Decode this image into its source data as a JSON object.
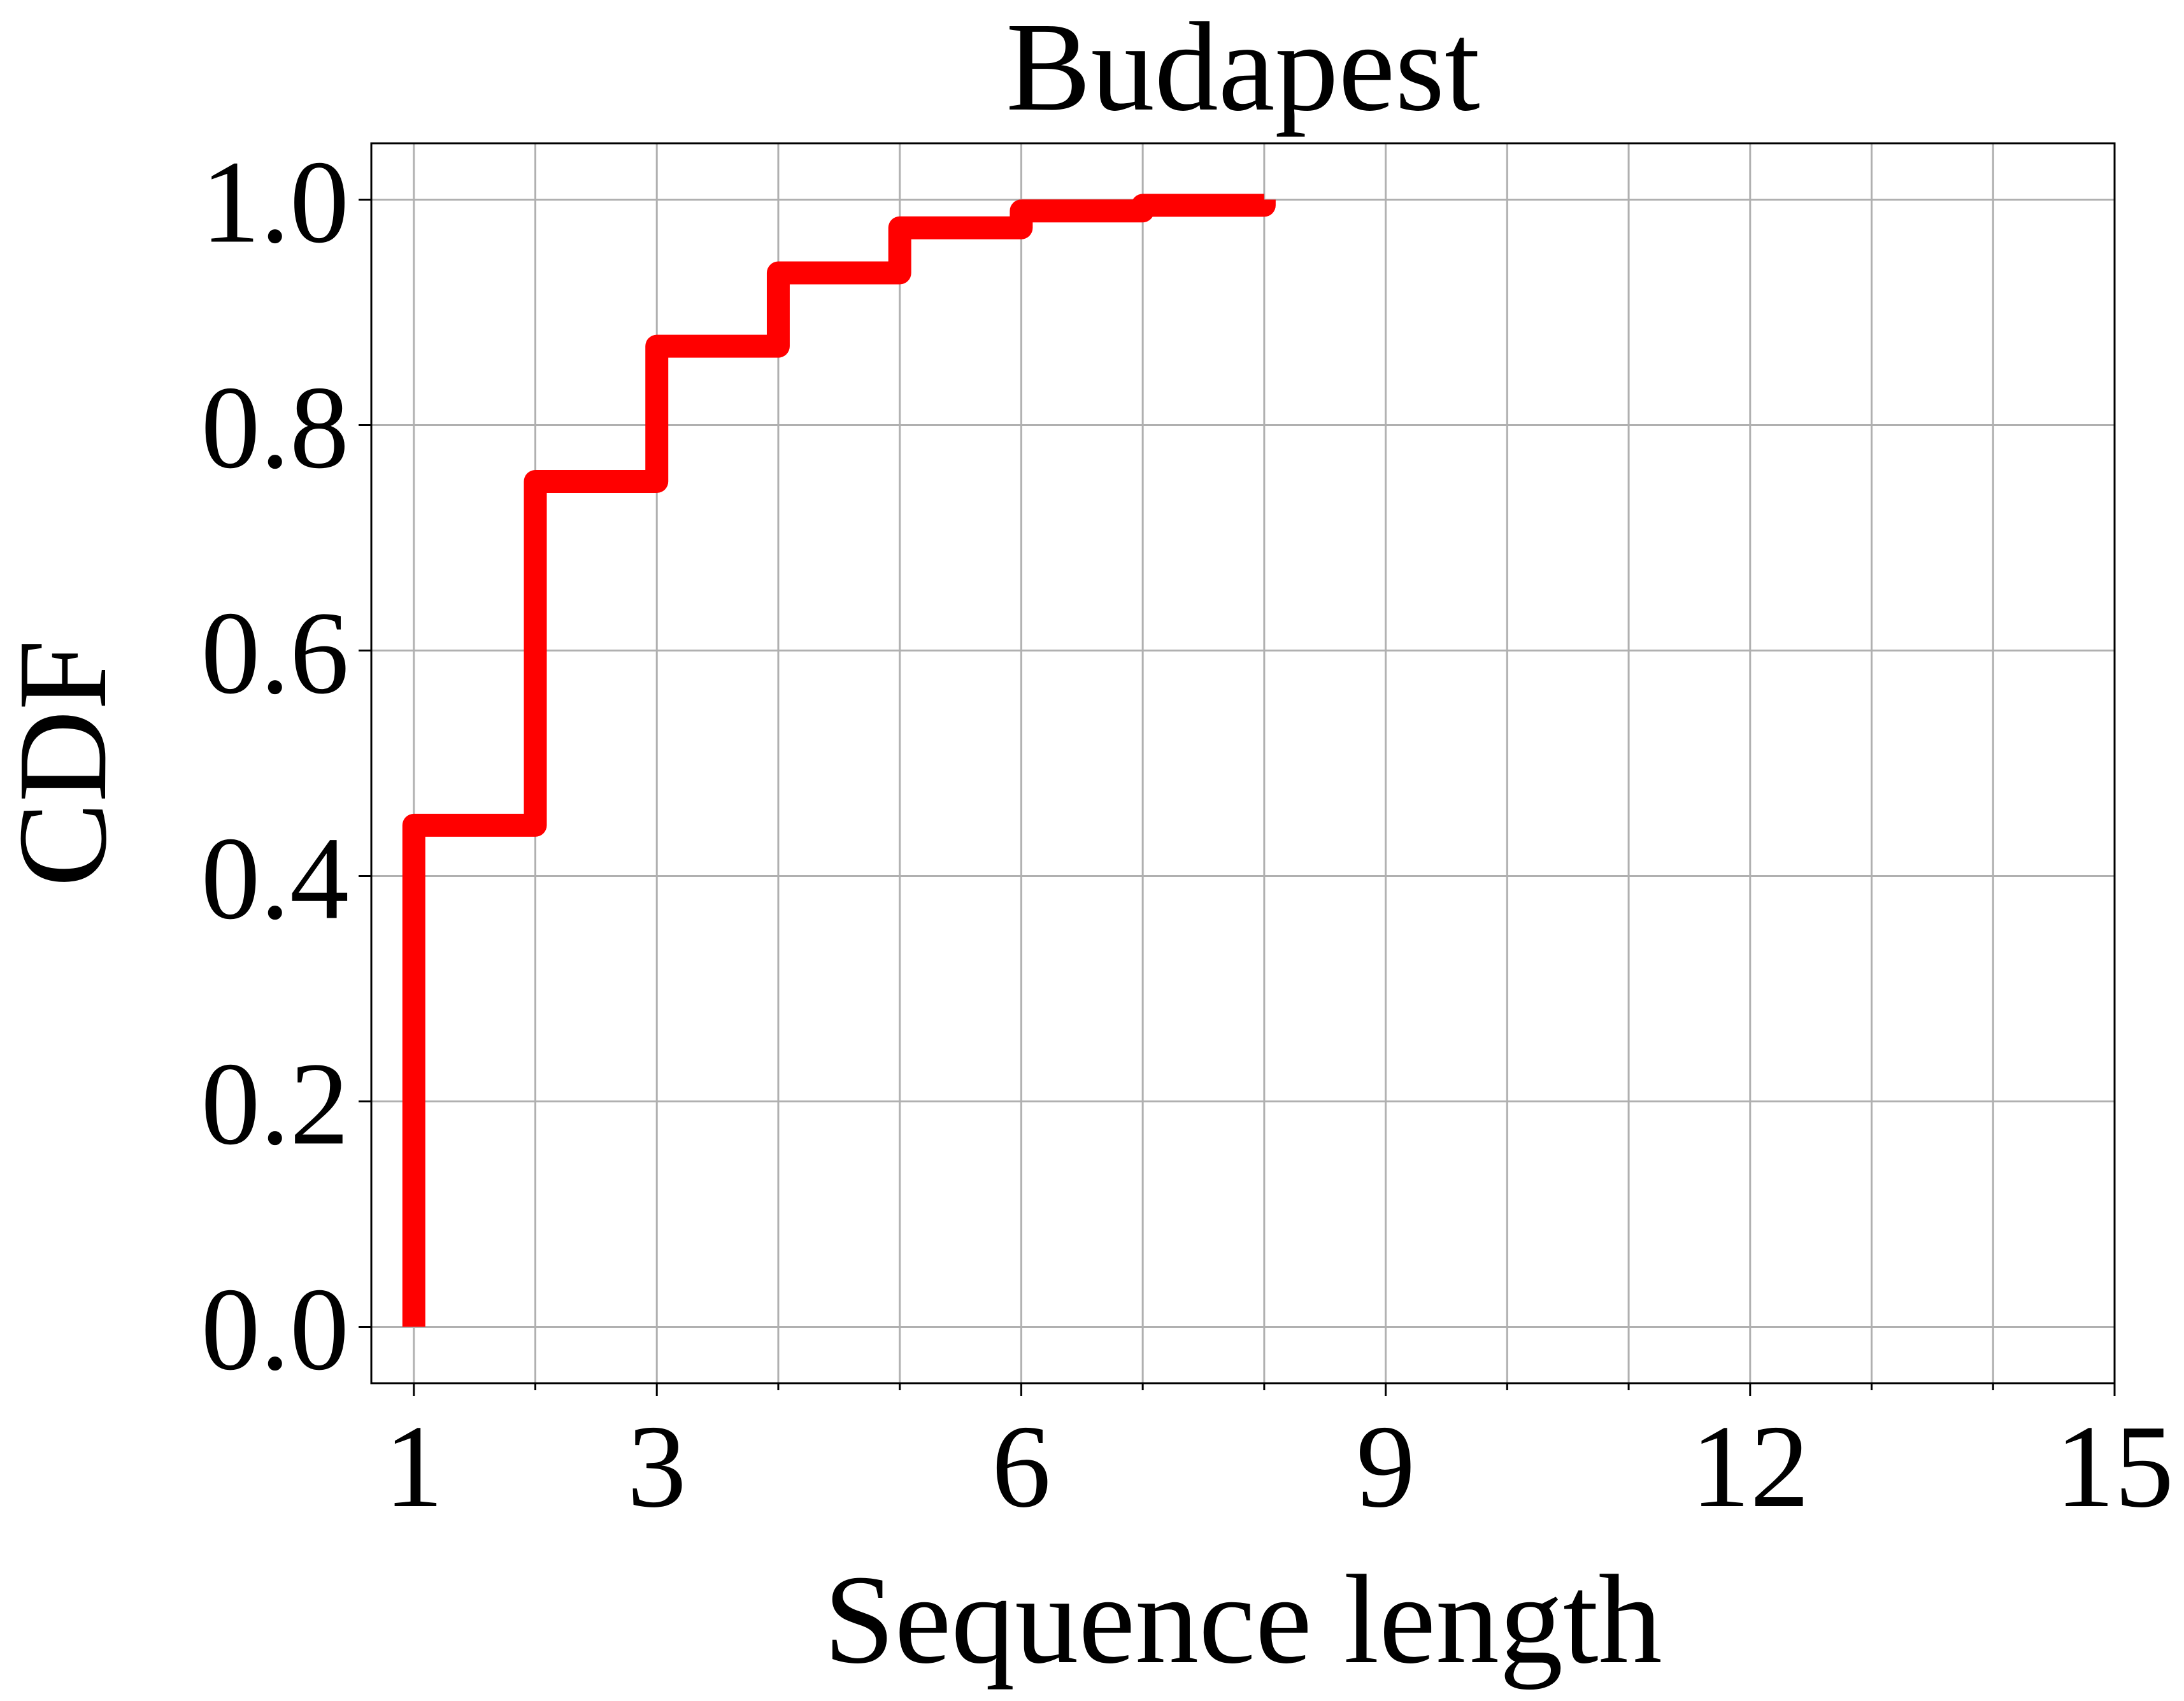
{
  "chart_data": {
    "type": "line",
    "step": true,
    "title": "Budapest",
    "xlabel": "Sequence length",
    "ylabel": "CDF",
    "xlim": [
      0.65,
      15
    ],
    "ylim": [
      -0.05,
      1.05
    ],
    "x_major_ticks": [
      1,
      3,
      6,
      9,
      12,
      15
    ],
    "x_minor_ticks": [
      2,
      4,
      5,
      7,
      8,
      10,
      11,
      13,
      14
    ],
    "y_ticks": [
      0.0,
      0.2,
      0.4,
      0.6,
      0.8,
      1.0
    ],
    "x_tick_labels": [
      "1",
      "3",
      "6",
      "9",
      "12",
      "15"
    ],
    "y_tick_labels": [
      "0.0",
      "0.2",
      "0.4",
      "0.6",
      "0.8",
      "1.0"
    ],
    "grid": true,
    "series": [
      {
        "color": "#ff0000",
        "x": [
          1,
          2,
          3,
          4,
          5,
          6,
          7,
          8
        ],
        "y": [
          0.445,
          0.75,
          0.87,
          0.935,
          0.975,
          0.99,
          0.995,
          1.0
        ]
      }
    ]
  }
}
